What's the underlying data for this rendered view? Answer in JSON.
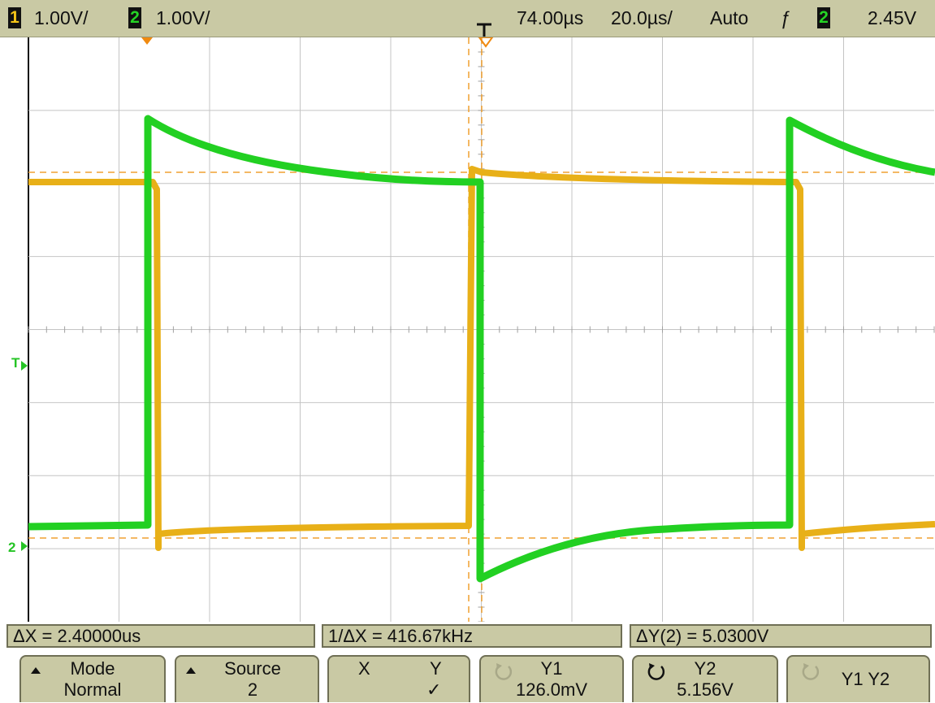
{
  "header": {
    "ch1_badge": "1",
    "ch1_scale": "1.00V/",
    "ch2_badge": "2",
    "ch2_scale": "1.00V/",
    "time_delay": "74.00µs",
    "time_scale": "20.0µs/",
    "trigger_mode": "Auto",
    "trigger_slope_glyph": "ƒ",
    "trigger_source_badge": "2",
    "trigger_level": "2.45V"
  },
  "screen_markers": {
    "trigger_level_marker": "T",
    "ch2_ground_marker": "2"
  },
  "measurements": {
    "delta_x": "ΔX = 2.40000us",
    "inverse_delta_x": "1/ΔX = 416.67kHz",
    "delta_y": "ΔY(2) = 5.0300V"
  },
  "softkeys": [
    {
      "line1": "Mode",
      "line2": "Normal"
    },
    {
      "line1": "Source",
      "line2": "2"
    },
    {
      "line1_left": "X",
      "line1_right": "Y",
      "line2": "✓"
    },
    {
      "line1": "Y1",
      "line2": "126.0mV"
    },
    {
      "line1": "Y2",
      "line2": "5.156V"
    },
    {
      "line1": "Y1 Y2",
      "line2": ""
    }
  ],
  "colors": {
    "channel1": "#e8b018",
    "channel2": "#22d022",
    "menu_bg": "#c9c9a4",
    "grid": "#c4c4c4",
    "cursor": "#f0a030",
    "badge_ch1": "#f5c518",
    "badge_ch2": "#25d425"
  }
}
